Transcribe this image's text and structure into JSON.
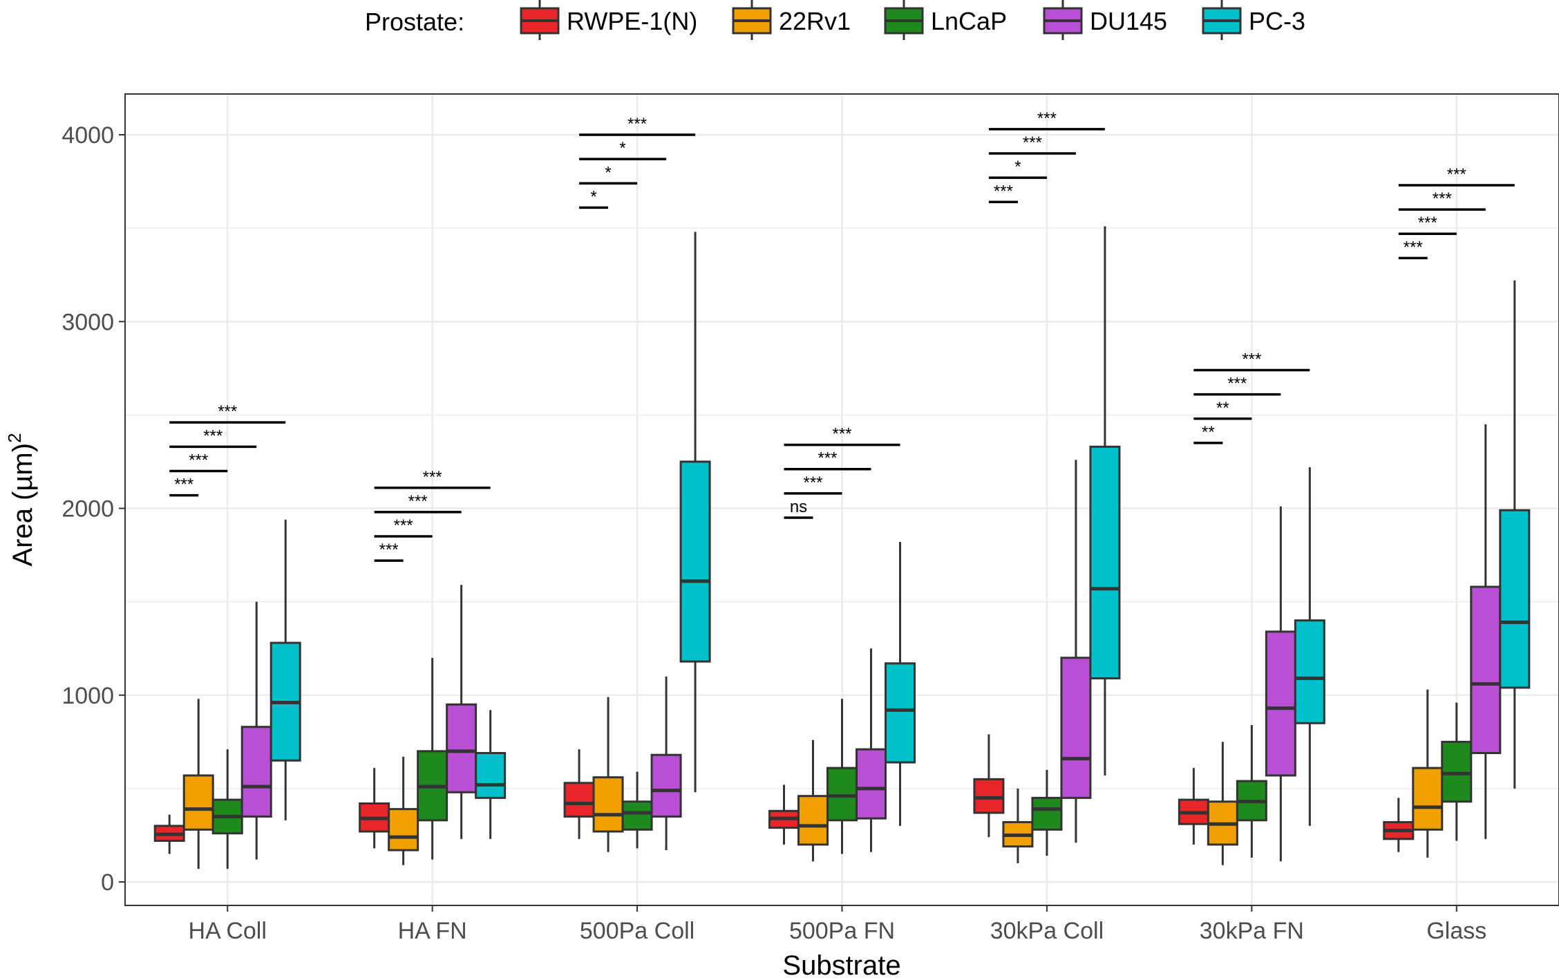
{
  "chart_data": {
    "type": "box",
    "xlabel": "Substrate",
    "ylabel": "Area (µm)",
    "ylabel_superscript": "2",
    "ylim": [
      -120,
      4200
    ],
    "yticks": [
      0,
      1000,
      2000,
      3000,
      4000
    ],
    "grid": true,
    "legend": {
      "title": "Prostate:",
      "position": "top"
    },
    "categories": [
      "HA Coll",
      "HA FN",
      "500Pa Coll",
      "500Pa FN",
      "30kPa Coll",
      "30kPa FN",
      "Glass"
    ],
    "series": [
      {
        "name": "RWPE-1(N)",
        "color": "#e8262a",
        "boxes": [
          {
            "min": 150,
            "q1": 220,
            "median": 255,
            "q3": 300,
            "max": 360
          },
          {
            "min": 180,
            "q1": 270,
            "median": 340,
            "q3": 420,
            "max": 610
          },
          {
            "min": 230,
            "q1": 350,
            "median": 420,
            "q3": 530,
            "max": 710
          },
          {
            "min": 200,
            "q1": 290,
            "median": 340,
            "q3": 380,
            "max": 520
          },
          {
            "min": 240,
            "q1": 370,
            "median": 450,
            "q3": 550,
            "max": 790
          },
          {
            "min": 200,
            "q1": 310,
            "median": 370,
            "q3": 440,
            "max": 610
          },
          {
            "min": 160,
            "q1": 230,
            "median": 275,
            "q3": 320,
            "max": 450
          }
        ]
      },
      {
        "name": "22Rv1",
        "color": "#f0a000",
        "boxes": [
          {
            "min": 70,
            "q1": 280,
            "median": 390,
            "q3": 570,
            "max": 980
          },
          {
            "min": 90,
            "q1": 170,
            "median": 240,
            "q3": 390,
            "max": 670
          },
          {
            "min": 160,
            "q1": 270,
            "median": 360,
            "q3": 560,
            "max": 990
          },
          {
            "min": 110,
            "q1": 200,
            "median": 300,
            "q3": 460,
            "max": 760
          },
          {
            "min": 100,
            "q1": 190,
            "median": 250,
            "q3": 320,
            "max": 500
          },
          {
            "min": 90,
            "q1": 200,
            "median": 310,
            "q3": 430,
            "max": 750
          },
          {
            "min": 130,
            "q1": 280,
            "median": 400,
            "q3": 610,
            "max": 1030
          }
        ]
      },
      {
        "name": "LnCaP",
        "color": "#1e8a1e",
        "boxes": [
          {
            "min": 70,
            "q1": 260,
            "median": 350,
            "q3": 440,
            "max": 710
          },
          {
            "min": 120,
            "q1": 330,
            "median": 510,
            "q3": 700,
            "max": 1200
          },
          {
            "min": 180,
            "q1": 280,
            "median": 370,
            "q3": 430,
            "max": 590
          },
          {
            "min": 150,
            "q1": 330,
            "median": 460,
            "q3": 610,
            "max": 980
          },
          {
            "min": 140,
            "q1": 280,
            "median": 390,
            "q3": 450,
            "max": 600
          },
          {
            "min": 130,
            "q1": 330,
            "median": 430,
            "q3": 540,
            "max": 840
          },
          {
            "min": 220,
            "q1": 430,
            "median": 580,
            "q3": 750,
            "max": 960
          }
        ]
      },
      {
        "name": "DU145",
        "color": "#b94fd4",
        "boxes": [
          {
            "min": 120,
            "q1": 350,
            "median": 510,
            "q3": 830,
            "max": 1500
          },
          {
            "min": 230,
            "q1": 480,
            "median": 700,
            "q3": 950,
            "max": 1590
          },
          {
            "min": 170,
            "q1": 350,
            "median": 490,
            "q3": 680,
            "max": 1100
          },
          {
            "min": 160,
            "q1": 340,
            "median": 500,
            "q3": 710,
            "max": 1250
          },
          {
            "min": 210,
            "q1": 450,
            "median": 660,
            "q3": 1200,
            "max": 2260
          },
          {
            "min": 110,
            "q1": 570,
            "median": 930,
            "q3": 1340,
            "max": 2010
          },
          {
            "min": 230,
            "q1": 690,
            "median": 1060,
            "q3": 1580,
            "max": 2450
          }
        ]
      },
      {
        "name": "PC-3",
        "color": "#00c1c9",
        "boxes": [
          {
            "min": 330,
            "q1": 650,
            "median": 960,
            "q3": 1280,
            "max": 1940
          },
          {
            "min": 230,
            "q1": 450,
            "median": 520,
            "q3": 690,
            "max": 920
          },
          {
            "min": 480,
            "q1": 1180,
            "median": 1610,
            "q3": 2250,
            "max": 3480
          },
          {
            "min": 300,
            "q1": 640,
            "median": 920,
            "q3": 1170,
            "max": 1820
          },
          {
            "min": 570,
            "q1": 1090,
            "median": 1570,
            "q3": 2330,
            "max": 3510
          },
          {
            "min": 300,
            "q1": 850,
            "median": 1090,
            "q3": 1400,
            "max": 2220
          },
          {
            "min": 500,
            "q1": 1040,
            "median": 1390,
            "q3": 1990,
            "max": 3220
          }
        ]
      }
    ],
    "significance": [
      {
        "group": 0,
        "y": [
          2070,
          2200,
          2330,
          2460
        ],
        "labels": [
          "***",
          "***",
          "***",
          "***"
        ]
      },
      {
        "group": 1,
        "y": [
          1720,
          1850,
          1980,
          2110
        ],
        "labels": [
          "***",
          "***",
          "***",
          "***"
        ]
      },
      {
        "group": 2,
        "y": [
          3610,
          3740,
          3870,
          4000
        ],
        "labels": [
          "*",
          "*",
          "*",
          "***"
        ]
      },
      {
        "group": 3,
        "y": [
          1950,
          2080,
          2210,
          2340
        ],
        "labels": [
          "ns",
          "***",
          "***",
          "***"
        ]
      },
      {
        "group": 4,
        "y": [
          3640,
          3770,
          3900,
          4030
        ],
        "labels": [
          "***",
          "*",
          "***",
          "***"
        ]
      },
      {
        "group": 5,
        "y": [
          2350,
          2480,
          2610,
          2740
        ],
        "labels": [
          "**",
          "**",
          "***",
          "***"
        ]
      },
      {
        "group": 6,
        "y": [
          3340,
          3470,
          3600,
          3730
        ],
        "labels": [
          "***",
          "***",
          "***",
          "***"
        ]
      }
    ]
  }
}
